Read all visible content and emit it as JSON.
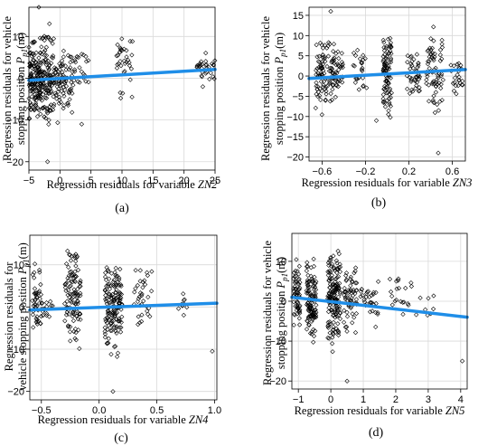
{
  "chart_data": [
    {
      "type": "scatter",
      "panel_label": "(a)",
      "xlabel_prefix": "Regression residuals for variable ",
      "xlabel_var": "ZN2",
      "ylabel_line1": "Regression residuals for vehicle",
      "ylabel_line2_prefix": "stopping position ",
      "ylabel_sym": "P",
      "ylabel_sub": "p1",
      "ylabel_suffix": "(m)",
      "xlim": [
        -5,
        25
      ],
      "ylim": [
        -22,
        17
      ],
      "xticks": [
        -5,
        0,
        5,
        10,
        15,
        20,
        25
      ],
      "yticks": [
        -20,
        -10,
        0,
        10
      ],
      "xtick_labels": [
        "−5",
        "0",
        "5",
        "10",
        "15",
        "20",
        "25"
      ],
      "ytick_labels": [
        "−20",
        "−10",
        "0",
        "10"
      ],
      "grid": true,
      "fit_line": {
        "x": [
          -5,
          25
        ],
        "y": [
          -0.5,
          2.1
        ]
      },
      "clusters": [
        {
          "x": [
            -5,
            -3
          ],
          "y": [
            -14,
            13
          ],
          "n": 150
        },
        {
          "x": [
            -3,
            -1
          ],
          "y": [
            -15,
            16
          ],
          "n": 110
        },
        {
          "x": [
            -1,
            2
          ],
          "y": [
            -12,
            12
          ],
          "n": 80
        },
        {
          "x": [
            2,
            5
          ],
          "y": [
            -6,
            10
          ],
          "n": 25
        },
        {
          "x": [
            9,
            12
          ],
          "y": [
            -7,
            14
          ],
          "n": 35
        },
        {
          "x": [
            22,
            25
          ],
          "y": [
            -3,
            8
          ],
          "n": 30
        }
      ],
      "points": [
        {
          "x": -2,
          "y": -20
        },
        {
          "x": 3.5,
          "y": -11
        },
        {
          "x": -3.4,
          "y": 17
        }
      ]
    },
    {
      "type": "scatter",
      "panel_label": "(b)",
      "xlabel_prefix": "Regression residuals for variable ",
      "xlabel_var": "ZN3",
      "ylabel_line1": "Regression residuals for vehicle",
      "ylabel_line2_prefix": "stopping position ",
      "ylabel_sym": "P",
      "ylabel_sub": "p1",
      "ylabel_suffix": "(m)",
      "xlim": [
        -0.72,
        0.72
      ],
      "ylim": [
        -21,
        17
      ],
      "xticks": [
        -0.6,
        -0.2,
        0.2,
        0.6
      ],
      "yticks": [
        -20,
        -15,
        -10,
        -5,
        0,
        5,
        10,
        15
      ],
      "xtick_labels": [
        "−0.6",
        "−0.2",
        "0.2",
        "0.6"
      ],
      "ytick_labels": [
        "−20",
        "−15",
        "−10",
        "−5",
        "0",
        "5",
        "10",
        "15"
      ],
      "grid": true,
      "fit_line": {
        "x": [
          -0.72,
          0.72
        ],
        "y": [
          -0.6,
          1.6
        ]
      },
      "clusters": [
        {
          "x": [
            -0.66,
            -0.5
          ],
          "y": [
            -13,
            13
          ],
          "n": 90
        },
        {
          "x": [
            -0.5,
            -0.4
          ],
          "y": [
            -10,
            11
          ],
          "n": 40
        },
        {
          "x": [
            -0.32,
            -0.18
          ],
          "y": [
            -8,
            10
          ],
          "n": 25
        },
        {
          "x": [
            -0.04,
            0.04
          ],
          "y": [
            -14,
            15
          ],
          "n": 90
        },
        {
          "x": [
            0.18,
            0.3
          ],
          "y": [
            -9,
            11
          ],
          "n": 40
        },
        {
          "x": [
            0.36,
            0.52
          ],
          "y": [
            -13,
            14
          ],
          "n": 70
        },
        {
          "x": [
            0.58,
            0.7
          ],
          "y": [
            -7,
            6
          ],
          "n": 25
        }
      ],
      "points": [
        {
          "x": 0.47,
          "y": -19
        },
        {
          "x": -0.52,
          "y": 16
        },
        {
          "x": -0.1,
          "y": -11
        }
      ]
    },
    {
      "type": "scatter",
      "panel_label": "(c)",
      "xlabel_prefix": "Regression residuals for variable ",
      "xlabel_var": "ZN4",
      "ylabel_line1": "Regression residuals for",
      "ylabel_line2_prefix": "vehicle stopping position ",
      "ylabel_sym": "P",
      "ylabel_sub": "p1",
      "ylabel_suffix": "(m)",
      "xlim": [
        -0.6,
        1.02
      ],
      "ylim": [
        -22,
        17
      ],
      "xticks": [
        -0.5,
        0,
        0.5,
        1
      ],
      "yticks": [
        -20,
        -10,
        0,
        10
      ],
      "xtick_labels": [
        "−0.5",
        "0.0",
        "0.5",
        "1.0"
      ],
      "ytick_labels": [
        "−20",
        "−10",
        "0",
        "10"
      ],
      "grid": true,
      "fit_line": {
        "x": [
          -0.6,
          1.02
        ],
        "y": [
          -0.7,
          0.9
        ]
      },
      "clusters": [
        {
          "x": [
            -0.58,
            -0.5
          ],
          "y": [
            -11,
            13
          ],
          "n": 45
        },
        {
          "x": [
            -0.5,
            -0.4
          ],
          "y": [
            -7,
            8
          ],
          "n": 15
        },
        {
          "x": [
            -0.3,
            -0.16
          ],
          "y": [
            -13,
            17
          ],
          "n": 110
        },
        {
          "x": [
            0.05,
            0.2
          ],
          "y": [
            -14,
            15
          ],
          "n": 150
        },
        {
          "x": [
            0.3,
            0.46
          ],
          "y": [
            -7,
            12
          ],
          "n": 35
        },
        {
          "x": [
            0.68,
            0.76
          ],
          "y": [
            -4,
            6
          ],
          "n": 10
        }
      ],
      "points": [
        {
          "x": 0.12,
          "y": -20
        },
        {
          "x": 0.98,
          "y": -10.5
        }
      ]
    },
    {
      "type": "scatter",
      "panel_label": "(d)",
      "xlabel_prefix": "Regression residuals for variable ",
      "xlabel_var": "ZN5",
      "ylabel_line1": "Regression residuals for vehicle",
      "ylabel_line2_prefix": "stopping position ",
      "ylabel_sym": "P",
      "ylabel_sub": "p1",
      "ylabel_suffix": "(m)",
      "xlim": [
        -1.2,
        4.2
      ],
      "ylim": [
        -22,
        17
      ],
      "xticks": [
        -1,
        0,
        1,
        2,
        3,
        4
      ],
      "yticks": [
        -20,
        -10,
        0,
        10
      ],
      "xtick_labels": [
        "−1",
        "0",
        "1",
        "2",
        "3",
        "4"
      ],
      "ytick_labels": [
        "−20",
        "−10",
        "0",
        "10"
      ],
      "grid": true,
      "fit_line": {
        "x": [
          -1.2,
          4.2
        ],
        "y": [
          1.0,
          -4.0
        ]
      },
      "clusters": [
        {
          "x": [
            -1.15,
            -0.95
          ],
          "y": [
            -10,
            12
          ],
          "n": 60
        },
        {
          "x": [
            -0.75,
            -0.45
          ],
          "y": [
            -13,
            13
          ],
          "n": 110
        },
        {
          "x": [
            -0.1,
            0.3
          ],
          "y": [
            -14,
            16
          ],
          "n": 160
        },
        {
          "x": [
            0.4,
            0.8
          ],
          "y": [
            -10,
            13
          ],
          "n": 60
        },
        {
          "x": [
            0.9,
            1.5
          ],
          "y": [
            -9,
            8
          ],
          "n": 30
        },
        {
          "x": [
            1.8,
            2.5
          ],
          "y": [
            -8,
            9
          ],
          "n": 20
        },
        {
          "x": [
            2.6,
            3.2
          ],
          "y": [
            -6,
            4
          ],
          "n": 8
        }
      ],
      "points": [
        {
          "x": 4.05,
          "y": -15
        },
        {
          "x": 0.5,
          "y": -20
        }
      ]
    }
  ]
}
